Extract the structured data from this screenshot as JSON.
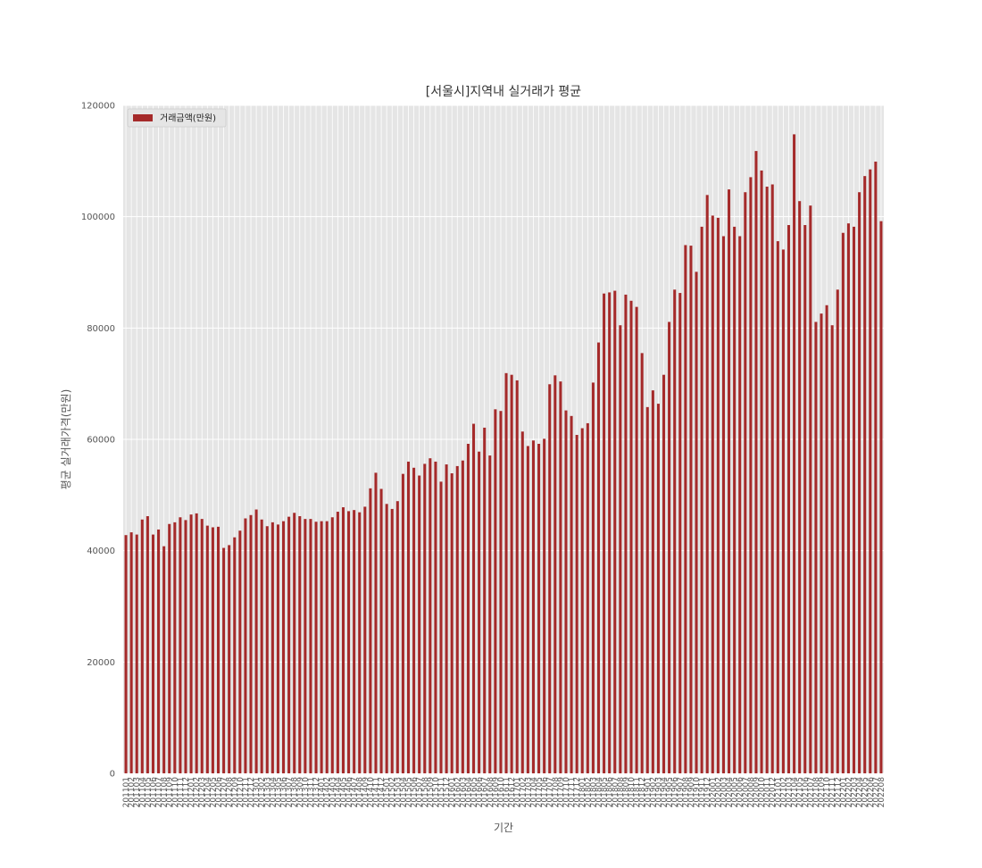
{
  "chart_data": {
    "type": "bar",
    "title": "[서울시]지역내 실거래가 평균",
    "xlabel": "기간",
    "ylabel": "평균 실거래가격(만원)",
    "ylim": [
      0,
      120000
    ],
    "yticks": [
      0,
      20000,
      40000,
      60000,
      80000,
      100000,
      120000
    ],
    "grid": true,
    "legend_position": "top-left",
    "colors": {
      "bar": "#a52a2a",
      "plot_bg": "#e5e5e5",
      "grid": "#ffffff"
    },
    "first_period": "201101",
    "last_period": "202308",
    "series": [
      {
        "name": "거래금액(만원)",
        "values": [
          42800,
          43300,
          42900,
          45600,
          46200,
          42900,
          43800,
          40800,
          44800,
          45100,
          46000,
          45500,
          46500,
          46700,
          45700,
          44500,
          44200,
          44300,
          40500,
          41000,
          42400,
          43600,
          45800,
          46400,
          47400,
          45600,
          44400,
          45100,
          44700,
          45300,
          46100,
          46800,
          46200,
          45700,
          45700,
          45200,
          45300,
          45300,
          46000,
          47000,
          47800,
          47100,
          47300,
          46900,
          47900,
          51200,
          54000,
          51100,
          48400,
          47500,
          48900,
          53800,
          56000,
          54900,
          53500,
          55600,
          56600,
          56000,
          52400,
          55500,
          53900,
          55200,
          56200,
          59200,
          62800,
          57800,
          62100,
          57100,
          65400,
          65100,
          71900,
          71600,
          70600,
          61400,
          58800,
          59800,
          59200,
          60100,
          69900,
          71500,
          70400,
          65200,
          64200,
          60800,
          62000,
          62900,
          70200,
          77400,
          86200,
          86400,
          86700,
          80500,
          86000,
          84900,
          83800,
          75500,
          65800,
          68800,
          66400,
          71600,
          81100,
          86900,
          86300,
          94900,
          94800,
          90100,
          98200,
          103900,
          100200,
          99800,
          96500,
          104900,
          98200,
          96500,
          104400,
          107100,
          111800,
          108300,
          105400,
          105800,
          95600,
          94100,
          98500,
          114800,
          102800,
          98500,
          102000,
          81100,
          82600,
          84100,
          80500,
          86900,
          97100,
          98800,
          98200,
          104400,
          107300,
          108500,
          109900,
          99200
        ]
      }
    ]
  }
}
